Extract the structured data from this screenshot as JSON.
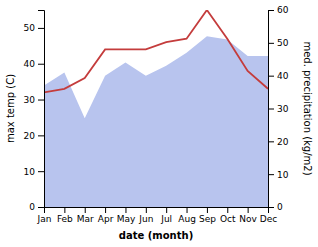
{
  "chart_data": {
    "type": "line",
    "categories": [
      "Jan",
      "Feb",
      "Mar",
      "Apr",
      "May",
      "Jun",
      "Jul",
      "Aug",
      "Sep",
      "Oct",
      "Nov",
      "Dec"
    ],
    "series": [
      {
        "type": "area",
        "axis": "y2",
        "color": "#b8c4ee",
        "values": [
          37,
          41,
          27,
          40,
          44,
          40,
          43,
          47,
          52,
          51,
          46,
          46
        ]
      },
      {
        "type": "line",
        "color": "#c43c3c",
        "values": [
          32,
          33,
          36,
          44,
          44,
          44,
          46,
          47,
          55,
          47,
          38,
          33
        ]
      }
    ],
    "xlabel": "date (month)",
    "ylabel": "max temp (C)",
    "y2label": "med. precipitation (kg/m2)",
    "ylim": [
      0,
      55
    ],
    "yticks": [
      0,
      10,
      20,
      30,
      40,
      50
    ],
    "y2lim": [
      0,
      60
    ],
    "y2ticks": [
      0,
      10,
      20,
      30,
      40,
      50,
      60
    ]
  }
}
